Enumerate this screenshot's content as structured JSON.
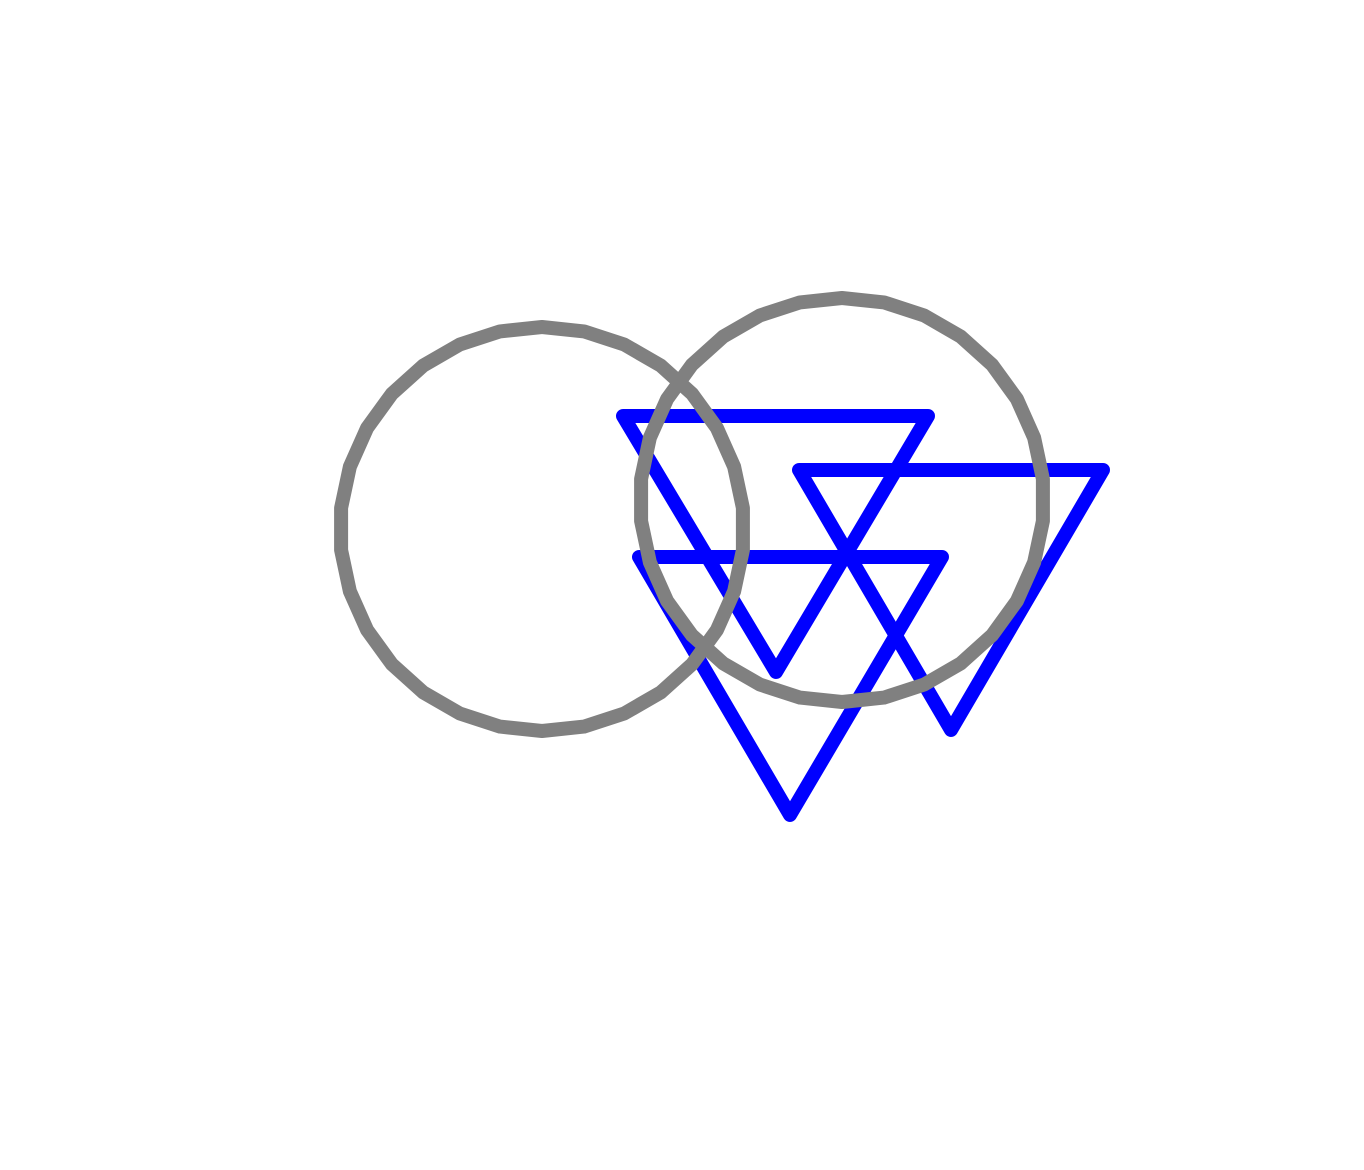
{
  "diagram": {
    "background_color": "#ffffff",
    "shapes": [
      {
        "kind": "circle",
        "name": "left-gray-circle",
        "color": "#808080"
      },
      {
        "kind": "circle",
        "name": "right-gray-circle",
        "color": "#808080"
      },
      {
        "kind": "triangle-down",
        "name": "upper-left-blue-triangle",
        "color": "#0000ff"
      },
      {
        "kind": "triangle-down",
        "name": "right-blue-triangle",
        "color": "#0000ff"
      },
      {
        "kind": "triangle-down",
        "name": "lower-blue-triangle",
        "color": "#0000ff"
      }
    ]
  }
}
